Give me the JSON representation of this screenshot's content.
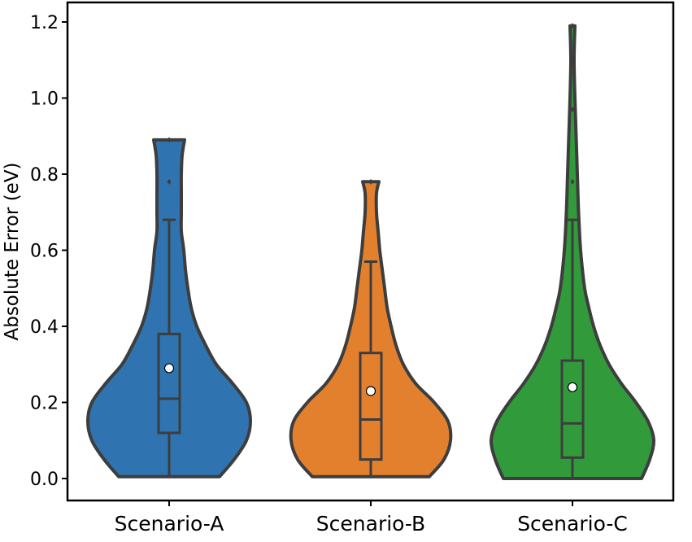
{
  "chart_data": {
    "type": "violin",
    "title": "",
    "xlabel": "",
    "ylabel": "Absolute Error (eV)",
    "ylim": [
      0,
      1.22
    ],
    "yticks": [
      0.0,
      0.2,
      0.4,
      0.6,
      0.8,
      1.0,
      1.2
    ],
    "ytick_labels": [
      "0.0",
      "0.2",
      "0.4",
      "0.6",
      "0.8",
      "1.0",
      "1.2"
    ],
    "grid": false,
    "categories": [
      "Scenario-A",
      "Scenario-B",
      "Scenario-C"
    ],
    "series": [
      {
        "category": "Scenario-A",
        "color": "#2f74b0",
        "min": 0.005,
        "q1": 0.12,
        "median": 0.21,
        "mean": 0.29,
        "q3": 0.38,
        "whisker_low": 0.005,
        "whisker_high": 0.68,
        "max": 0.89,
        "outliers": [
          0.78,
          0.89
        ],
        "density": [
          [
            0.005,
            0.62
          ],
          [
            0.05,
            0.8
          ],
          [
            0.1,
            0.95
          ],
          [
            0.15,
            1.0
          ],
          [
            0.2,
            0.95
          ],
          [
            0.25,
            0.78
          ],
          [
            0.3,
            0.58
          ],
          [
            0.35,
            0.45
          ],
          [
            0.4,
            0.34
          ],
          [
            0.45,
            0.27
          ],
          [
            0.5,
            0.23
          ],
          [
            0.55,
            0.2
          ],
          [
            0.6,
            0.18
          ],
          [
            0.65,
            0.15
          ],
          [
            0.7,
            0.15
          ],
          [
            0.75,
            0.15
          ],
          [
            0.8,
            0.15
          ],
          [
            0.85,
            0.16
          ],
          [
            0.89,
            0.19
          ]
        ]
      },
      {
        "category": "Scenario-B",
        "color": "#e3802e",
        "min": 0.005,
        "q1": 0.05,
        "median": 0.155,
        "mean": 0.23,
        "q3": 0.33,
        "whisker_low": 0.005,
        "whisker_high": 0.57,
        "max": 0.78,
        "outliers": [
          0.78
        ],
        "density": [
          [
            0.005,
            0.72
          ],
          [
            0.05,
            0.9
          ],
          [
            0.1,
            0.98
          ],
          [
            0.15,
            0.95
          ],
          [
            0.2,
            0.78
          ],
          [
            0.25,
            0.55
          ],
          [
            0.3,
            0.4
          ],
          [
            0.35,
            0.31
          ],
          [
            0.4,
            0.25
          ],
          [
            0.45,
            0.2
          ],
          [
            0.5,
            0.17
          ],
          [
            0.55,
            0.14
          ],
          [
            0.6,
            0.11
          ],
          [
            0.65,
            0.09
          ],
          [
            0.7,
            0.07
          ],
          [
            0.75,
            0.07
          ],
          [
            0.78,
            0.1
          ]
        ]
      },
      {
        "category": "Scenario-C",
        "color": "#319a3b",
        "min": 0.0,
        "q1": 0.055,
        "median": 0.145,
        "mean": 0.24,
        "q3": 0.31,
        "whisker_low": 0.0,
        "whisker_high": 0.68,
        "max": 1.19,
        "outliers": [
          0.78,
          0.97,
          1.19
        ],
        "density": [
          [
            0.0,
            0.85
          ],
          [
            0.05,
            0.95
          ],
          [
            0.1,
            1.0
          ],
          [
            0.15,
            0.93
          ],
          [
            0.2,
            0.78
          ],
          [
            0.25,
            0.6
          ],
          [
            0.3,
            0.45
          ],
          [
            0.35,
            0.34
          ],
          [
            0.4,
            0.26
          ],
          [
            0.45,
            0.2
          ],
          [
            0.5,
            0.15
          ],
          [
            0.6,
            0.1
          ],
          [
            0.7,
            0.075
          ],
          [
            0.8,
            0.06
          ],
          [
            0.9,
            0.045
          ],
          [
            1.0,
            0.03
          ],
          [
            1.1,
            0.02
          ],
          [
            1.19,
            0.03
          ]
        ]
      }
    ]
  }
}
